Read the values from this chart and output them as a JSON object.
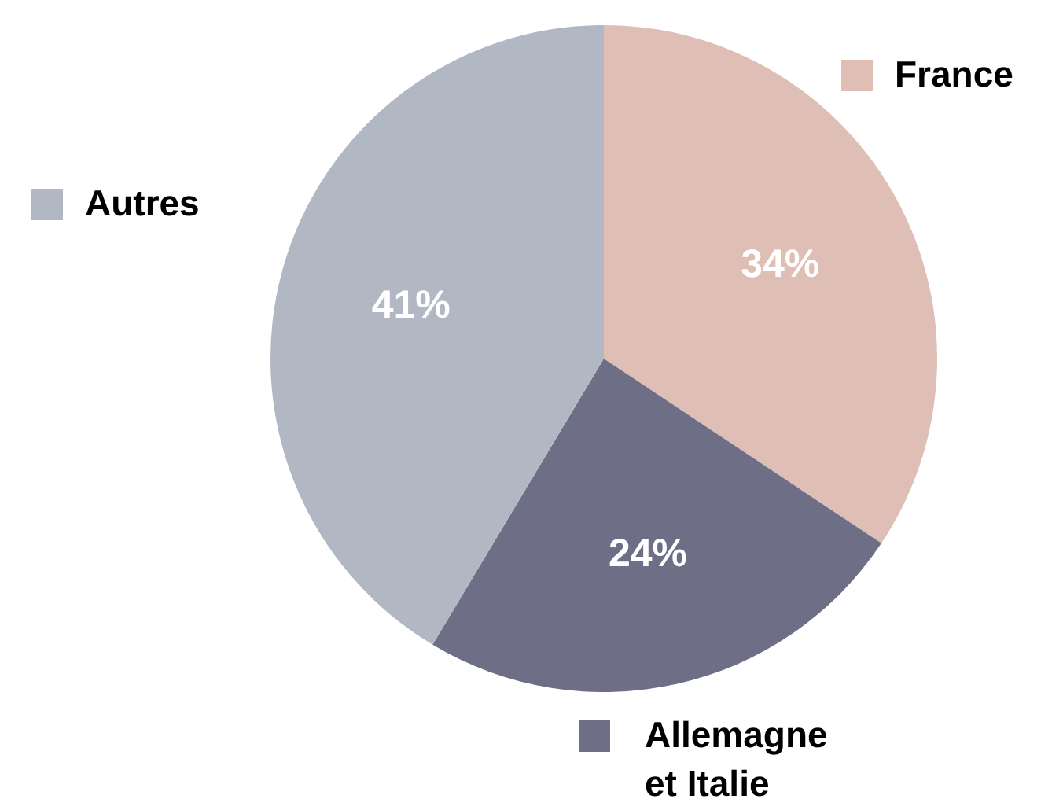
{
  "chart_data": {
    "type": "pie",
    "categories": [
      "France",
      "Allemagne et Italie",
      "Autres"
    ],
    "values": [
      34,
      24,
      41
    ],
    "colors": [
      "#dfbfb5",
      "#6e6e87",
      "#b1b8c4"
    ],
    "value_labels": [
      "34%",
      "24%",
      "41%"
    ],
    "legend": "bottom left"
  }
}
